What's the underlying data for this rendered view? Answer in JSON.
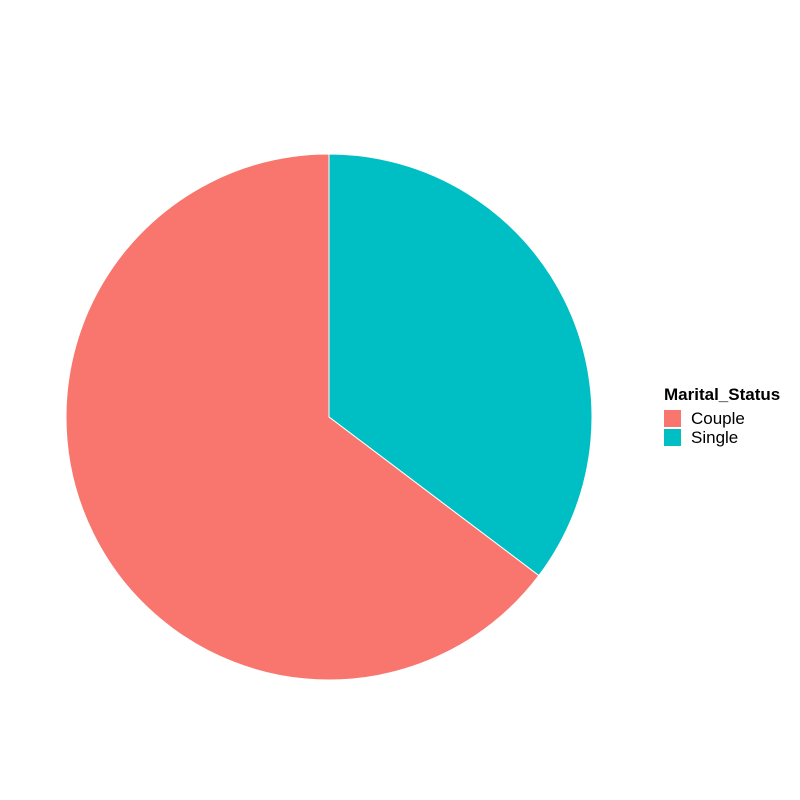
{
  "chart_data": {
    "type": "pie",
    "categories": [
      "Couple",
      "Single"
    ],
    "values": [
      64.7,
      35.3
    ],
    "colors": [
      "#F8766D",
      "#00BFC4"
    ],
    "start_angle": "12 o'clock",
    "direction": "counterclockwise for first slice (Couple), Single on the right",
    "legend": {
      "title": "Marital_Status",
      "placement": "right"
    }
  }
}
